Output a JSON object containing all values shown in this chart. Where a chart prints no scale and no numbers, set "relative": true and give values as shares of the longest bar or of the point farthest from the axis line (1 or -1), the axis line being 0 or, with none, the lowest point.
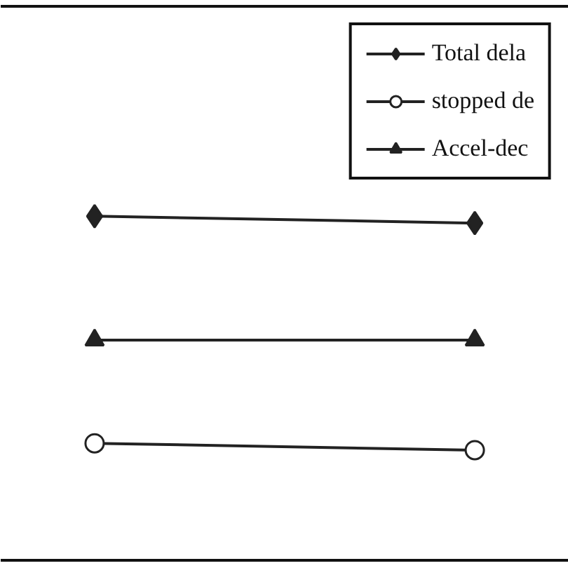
{
  "chart_data": {
    "type": "line",
    "relative": true,
    "categories": [
      null,
      null
    ],
    "series": [
      {
        "name": "Total dela",
        "color": "#222222",
        "marker": "diamond",
        "values": [
          1,
          0.98
        ]
      },
      {
        "name": "stopped de",
        "color": "#222222",
        "marker": "circle",
        "values": [
          0.34,
          0.32
        ]
      },
      {
        "name": "Accel-dec",
        "color": "#222222",
        "marker": "triangle",
        "values": [
          0.64,
          0.64
        ]
      }
    ],
    "legend": "top right",
    "grid": false
  }
}
